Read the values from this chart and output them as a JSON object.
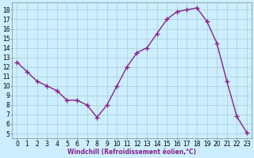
{
  "x": [
    0,
    1,
    2,
    3,
    4,
    5,
    6,
    7,
    8,
    9,
    10,
    11,
    12,
    13,
    14,
    15,
    16,
    17,
    18,
    19,
    20,
    21,
    22,
    23
  ],
  "y": [
    12.5,
    11.5,
    10.5,
    10.0,
    9.5,
    8.5,
    8.5,
    8.0,
    6.7,
    8.0,
    10.0,
    12.0,
    13.5,
    14.0,
    15.5,
    17.0,
    17.8,
    18.0,
    18.2,
    16.8,
    14.5,
    10.5,
    6.8,
    5.1
  ],
  "line_color": "#882288",
  "marker": "+",
  "marker_size": 4,
  "line_width": 1.0,
  "background_color": "#cceeff",
  "grid_color": "#aacccc",
  "xlabel": "Windchill (Refroidissement éolien,°C)",
  "xlabel_fontsize": 5.5,
  "tick_fontsize": 5.5,
  "ylim": [
    4.5,
    18.8
  ],
  "yticks": [
    5,
    6,
    7,
    8,
    9,
    10,
    11,
    12,
    13,
    14,
    15,
    16,
    17,
    18
  ],
  "xticks": [
    0,
    1,
    2,
    3,
    4,
    5,
    6,
    7,
    8,
    9,
    10,
    11,
    12,
    13,
    14,
    15,
    16,
    17,
    18,
    19,
    20,
    21,
    22,
    23
  ],
  "spine_color": "#888888",
  "xlabel_color": "#882288",
  "xlabel_bold": true
}
